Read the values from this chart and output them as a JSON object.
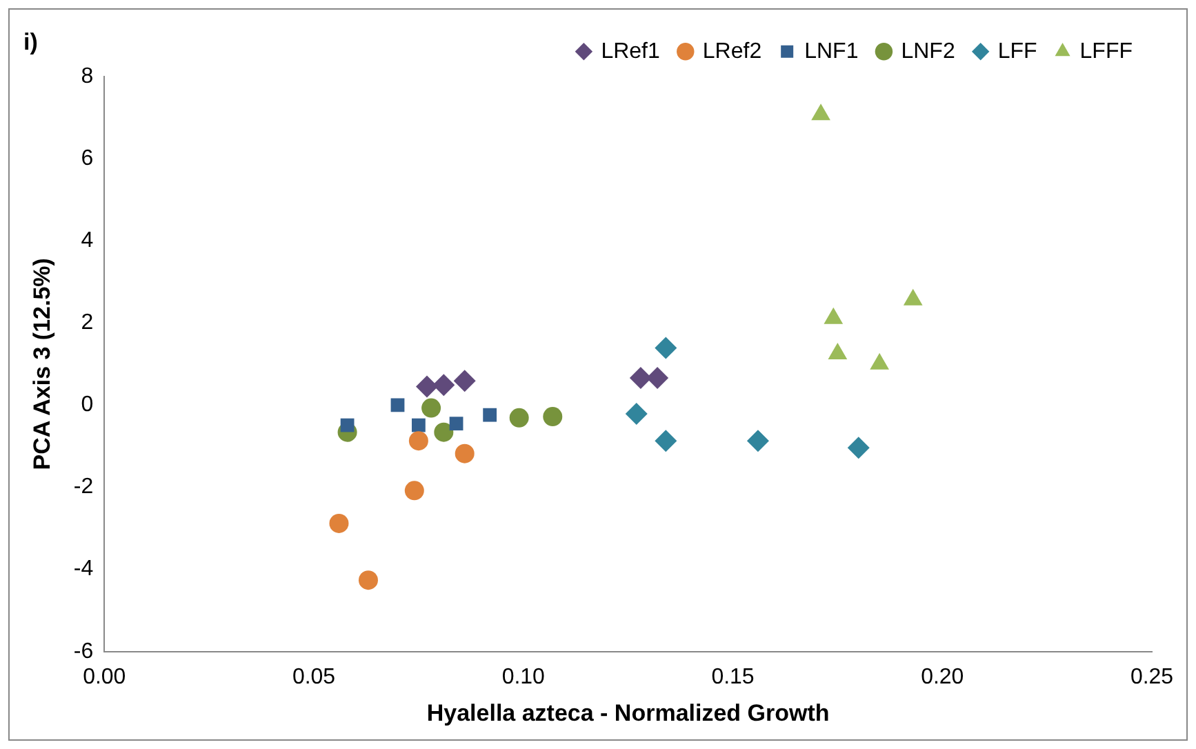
{
  "chart_data": {
    "type": "scatter",
    "title": "i)",
    "xlabel": "Hyalella azteca - Normalized Growth",
    "ylabel": "PCA Axis 3 (12.5%)",
    "xlim": [
      0,
      0.25
    ],
    "xticks": [
      {
        "value": 0,
        "label": "0.00"
      },
      {
        "value": 0.05,
        "label": "0.05"
      },
      {
        "value": 0.1,
        "label": "0.10"
      },
      {
        "value": 0.15,
        "label": "0.15"
      },
      {
        "value": 0.2,
        "label": "0.20"
      },
      {
        "value": 0.25,
        "label": "0.25"
      }
    ],
    "ylim": [
      -6,
      8
    ],
    "yticks": [
      -6,
      -4,
      -2,
      0,
      2,
      4,
      6,
      8
    ],
    "grid": false,
    "legend": "top right",
    "series": [
      {
        "name": "LRef1",
        "color": "#604a7b",
        "marker": "diamond",
        "x": [
          0.077,
          0.081,
          0.086,
          0.128,
          0.132
        ],
        "values": [
          0.45,
          0.49,
          0.59,
          0.66,
          0.66
        ]
      },
      {
        "name": "LRef2",
        "color": "#e0823a",
        "marker": "circle",
        "x": [
          0.075,
          0.086,
          0.074,
          0.056,
          0.063
        ],
        "values": [
          -0.87,
          -1.18,
          -2.08,
          -2.88,
          -4.26
        ]
      },
      {
        "name": "LNF1",
        "color": "#34608f",
        "marker": "square",
        "x": [
          0.058,
          0.07,
          0.075,
          0.084,
          0.092
        ],
        "values": [
          -0.49,
          0,
          -0.49,
          -0.45,
          -0.24
        ]
      },
      {
        "name": "LNF2",
        "color": "#77933c",
        "marker": "circle",
        "x": [
          0.058,
          0.078,
          0.081,
          0.099,
          0.107
        ],
        "values": [
          -0.66,
          -0.07,
          -0.66,
          -0.31,
          -0.28
        ]
      },
      {
        "name": "LFF",
        "color": "#31859c",
        "marker": "diamond",
        "x": [
          0.134,
          0.127,
          0.134,
          0.156,
          0.18
        ],
        "values": [
          1.39,
          -0.21,
          -0.87,
          -0.87,
          -1.04
        ]
      },
      {
        "name": "LFFF",
        "color": "#9bbb59",
        "marker": "triangle",
        "x": [
          0.171,
          0.193,
          0.174,
          0.175,
          0.185
        ],
        "values": [
          7.07,
          2.56,
          2.11,
          1.25,
          1.0
        ]
      }
    ]
  }
}
